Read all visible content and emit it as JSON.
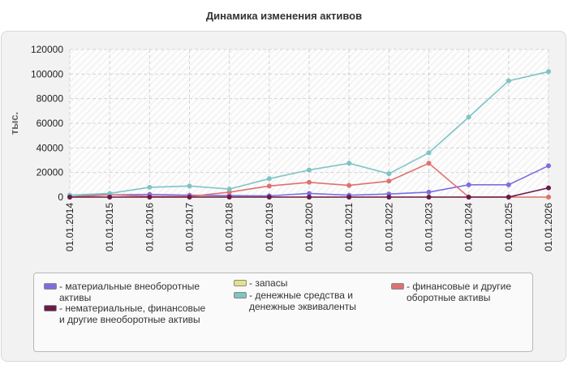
{
  "chart_data": {
    "type": "line",
    "title": "Динамика изменения активов",
    "ylabel": "тыс.",
    "xlabel": "",
    "ylim": [
      0,
      120000
    ],
    "yticks": [
      0,
      20000,
      40000,
      60000,
      80000,
      100000,
      120000
    ],
    "categories": [
      "01.01.2014",
      "01.01.2015",
      "01.01.2016",
      "01.01.2017",
      "01.01.2018",
      "01.01.2019",
      "01.01.2020",
      "01.01.2021",
      "01.01.2022",
      "01.01.2023",
      "01.01.2024",
      "01.01.2025",
      "01.01.2026"
    ],
    "series": [
      {
        "name": "материальные внеоборотные активы",
        "color": "#7b6fe0",
        "values": [
          1500,
          1800,
          2200,
          1500,
          1200,
          1000,
          3000,
          1500,
          2500,
          4000,
          10000,
          10000,
          25500
        ]
      },
      {
        "name": "нематериальные, финансовые и другие внеоборотные активы",
        "color": "#6b1a4a",
        "values": [
          0,
          0,
          0,
          0,
          0,
          0,
          0,
          0,
          0,
          0,
          0,
          0,
          7500
        ]
      },
      {
        "name": "запасы",
        "color": "#e8e08a",
        "values": [
          0,
          0,
          0,
          0,
          0,
          0,
          0,
          0,
          0,
          0,
          0,
          0,
          0
        ]
      },
      {
        "name": "денежные средства и денежные эквиваленты",
        "color": "#7ec4c4",
        "values": [
          1500,
          3000,
          8000,
          9000,
          6500,
          15000,
          22000,
          27500,
          19000,
          36000,
          65000,
          94500,
          102000
        ]
      },
      {
        "name": "финансовые и другие оборотные активы",
        "color": "#e07070",
        "values": [
          0,
          2000,
          500,
          500,
          4000,
          9000,
          12000,
          9500,
          13000,
          27500,
          0,
          0,
          0
        ]
      }
    ],
    "grid": true,
    "legend_position": "bottom"
  }
}
